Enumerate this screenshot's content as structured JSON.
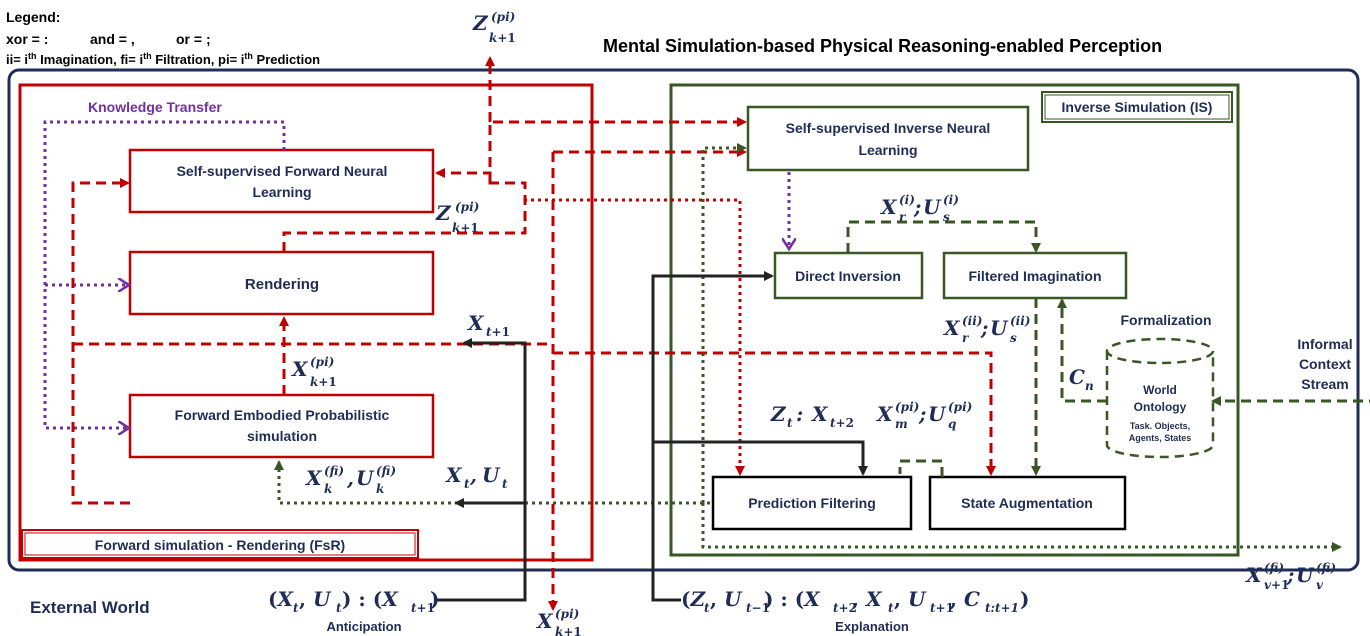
{
  "legend": {
    "title": "Legend:",
    "line1_parts": [
      "xor = :",
      "and = ,",
      "or = ;"
    ],
    "line2": "ii= i",
    "line2_sup": "th",
    "line2_mid1": " Imagination,  fi= i",
    "line2_sup2": "th",
    "line2_mid2": " Filtration, pi= i",
    "line2_sup3": "th",
    "line2_end": " Prediction"
  },
  "title": "Mental Simulation-based Physical Reasoning-enabled Perception",
  "fsr": {
    "title": "Forward simulation - Rendering (FsR)",
    "knowledge_transfer": "Knowledge Transfer",
    "forward_learning": [
      "Self-supervised Forward Neural",
      "Learning"
    ],
    "rendering": "Rendering",
    "embodied": [
      "Forward Embodied Probabilistic",
      "simulation"
    ]
  },
  "is": {
    "title": "Inverse Simulation (IS)",
    "inverse_learning": [
      "Self-supervised Inverse Neural",
      "Learning"
    ],
    "direct_inversion": "Direct Inversion",
    "filtered_imagination": "Filtered Imagination",
    "prediction_filtering": "Prediction Filtering",
    "state_augmentation": "State Augmentation",
    "formalization": "Formalization",
    "world_ontology": [
      "World",
      "Ontology"
    ],
    "ontology_items": [
      "Task. Objects,",
      "Agents, States"
    ]
  },
  "informal_context": [
    "Informal",
    "Context",
    "Stream"
  ],
  "external_world": "External World",
  "anticipation": "Anticipation",
  "explanation": "Explanation",
  "colors": {
    "frame": "#1f2d56",
    "fsr": "#c00000",
    "is": "#385723",
    "purple": "#7030a0",
    "black": "#222222",
    "text_dark": "#1f2d56"
  }
}
